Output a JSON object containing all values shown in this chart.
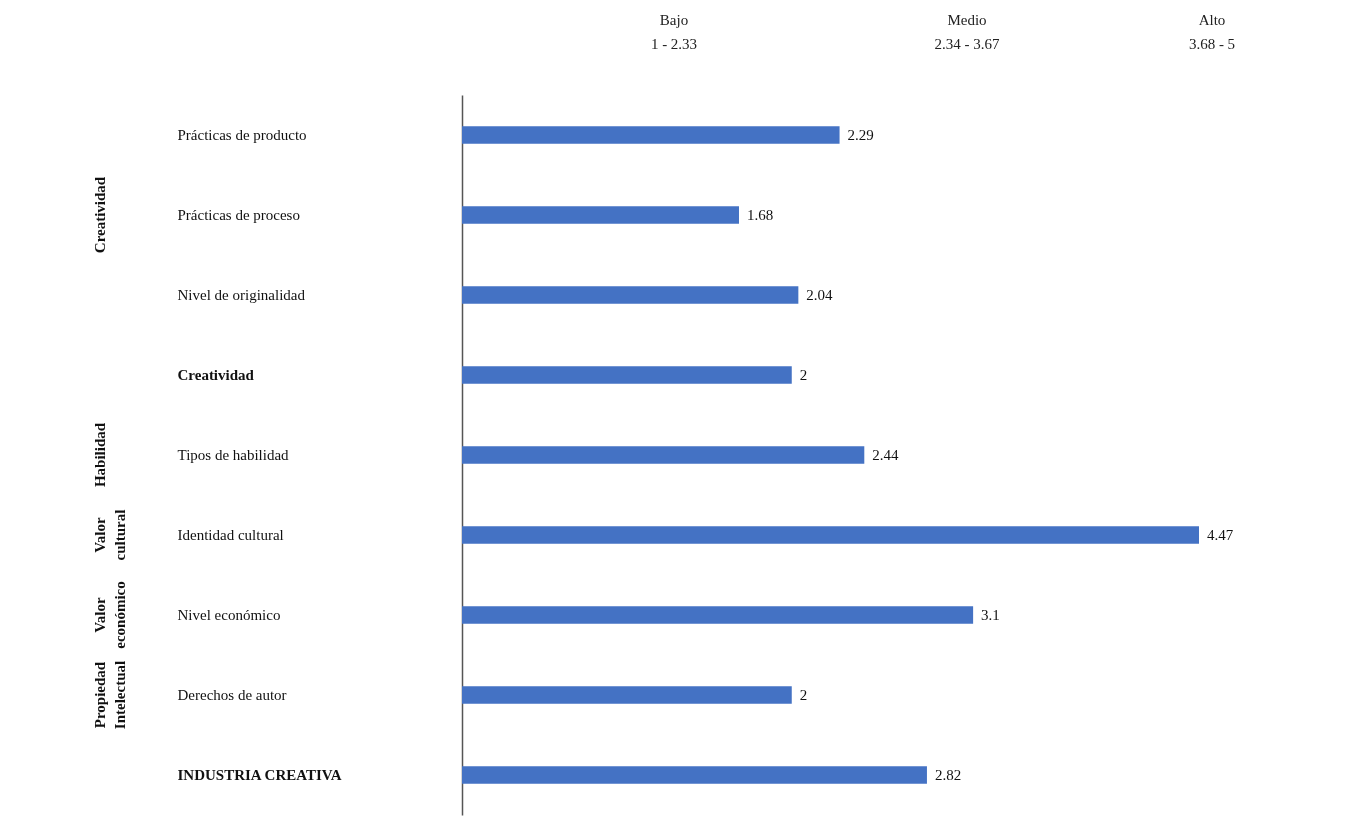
{
  "chart_data": {
    "type": "bar",
    "orientation": "horizontal",
    "categories": [
      "Prácticas de producto",
      "Prácticas de proceso",
      "Nivel de originalidad",
      "Creatividad",
      "Tipos de habilidad",
      "Identidad cultural",
      "Nivel económico",
      "Derechos de autor",
      "INDUSTRIA CREATIVA"
    ],
    "values": [
      2.29,
      1.68,
      2.04,
      2,
      2.44,
      4.47,
      3.1,
      2,
      2.82
    ],
    "color": "#4472c4",
    "data_labels": true,
    "tick_labels": "y",
    "grid": false,
    "annotations": [
      "Bajo\n1 - 2.33",
      "Medio\n2.34 - 3.67",
      "Alto\n3.68 - 5",
      "Creatividad",
      "Habilidad",
      "Valor\ncultural",
      "Valor\neconómico",
      "Propiedad\nIntelectual"
    ]
  }
}
